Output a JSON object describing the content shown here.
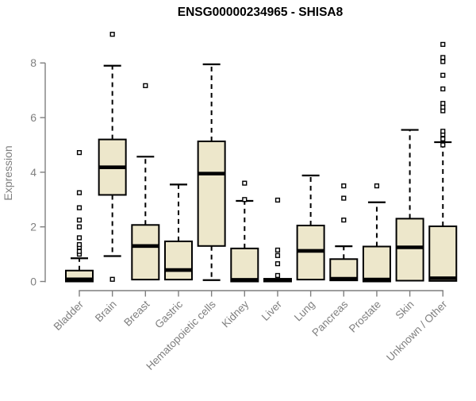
{
  "chart_data": {
    "type": "boxplot",
    "title": "ENSG00000234965 - SHISA8",
    "xlabel": "",
    "ylabel": "Expression",
    "ylim": [
      -0.3,
      9.3
    ],
    "yticks": [
      0,
      2,
      4,
      6,
      8
    ],
    "grid": false,
    "legend": "none",
    "categories": [
      "Bladder",
      "Brain",
      "Breast",
      "Gastric",
      "Hematopoietic cells",
      "Kidney",
      "Liver",
      "Lung",
      "Pancreas",
      "Prostate",
      "Skin",
      "Unknown / Other"
    ],
    "boxes": [
      {
        "category": "Bladder",
        "q1": 0.0,
        "median": 0.08,
        "q3": 0.4,
        "whisker_low": 0.0,
        "whisker_high": 0.85,
        "outliers": [
          1.0,
          1.1,
          1.25,
          1.35,
          1.6,
          2.0,
          2.25,
          2.7,
          3.25,
          4.72
        ]
      },
      {
        "category": "Brain",
        "q1": 3.17,
        "median": 4.18,
        "q3": 5.2,
        "whisker_low": 0.93,
        "whisker_high": 7.9,
        "outliers": [
          0.08,
          9.05
        ]
      },
      {
        "category": "Breast",
        "q1": 0.07,
        "median": 1.3,
        "q3": 2.07,
        "whisker_low": 0.0,
        "whisker_high": 4.57,
        "outliers": [
          7.17
        ]
      },
      {
        "category": "Gastric",
        "q1": 0.07,
        "median": 0.42,
        "q3": 1.47,
        "whisker_low": 0.0,
        "whisker_high": 3.55,
        "outliers": []
      },
      {
        "category": "Hematopoietic cells",
        "q1": 1.3,
        "median": 3.95,
        "q3": 5.13,
        "whisker_low": 0.05,
        "whisker_high": 7.95,
        "outliers": []
      },
      {
        "category": "Kidney",
        "q1": 0.0,
        "median": 0.06,
        "q3": 1.21,
        "whisker_low": 0.0,
        "whisker_high": 2.95,
        "outliers": [
          3.0,
          3.6
        ]
      },
      {
        "category": "Liver",
        "q1": 0.0,
        "median": 0.04,
        "q3": 0.1,
        "whisker_low": 0.0,
        "whisker_high": 0.15,
        "outliers": [
          0.22,
          0.65,
          0.95,
          1.15,
          2.98
        ]
      },
      {
        "category": "Lung",
        "q1": 0.07,
        "median": 1.12,
        "q3": 2.05,
        "whisker_low": 0.0,
        "whisker_high": 3.88,
        "outliers": []
      },
      {
        "category": "Pancreas",
        "q1": 0.04,
        "median": 0.1,
        "q3": 0.82,
        "whisker_low": 0.0,
        "whisker_high": 1.29,
        "outliers": [
          2.25,
          3.05,
          3.5
        ]
      },
      {
        "category": "Prostate",
        "q1": 0.0,
        "median": 0.07,
        "q3": 1.28,
        "whisker_low": 0.0,
        "whisker_high": 2.9,
        "outliers": [
          3.5
        ]
      },
      {
        "category": "Skin",
        "q1": 0.03,
        "median": 1.25,
        "q3": 2.3,
        "whisker_low": 0.0,
        "whisker_high": 5.55,
        "outliers": []
      },
      {
        "category": "Unknown / Other",
        "q1": 0.02,
        "median": 0.12,
        "q3": 2.02,
        "whisker_low": 0.0,
        "whisker_high": 5.1,
        "outliers": [
          5.0,
          5.22,
          5.38,
          5.5,
          6.25,
          6.38,
          6.52,
          7.05,
          7.55,
          8.05,
          8.2,
          8.68
        ]
      }
    ],
    "style": {
      "box_fill": "#EDE7CB",
      "box_stroke": "#000000",
      "median_color": "#000000",
      "whisker_style": "dashed",
      "outlier_marker": "open-square",
      "axis_color": "#7F7F7F",
      "tick_label_color": "#7F7F7F",
      "title_color": "#000000",
      "background": "#FFFFFF"
    }
  }
}
